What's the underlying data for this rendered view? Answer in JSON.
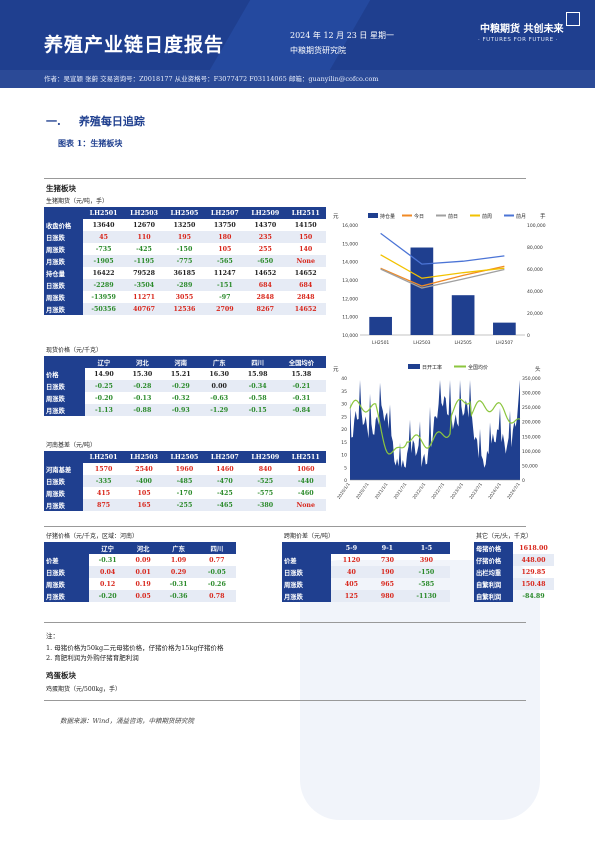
{
  "header": {
    "title": "养殖产业链日度报告",
    "date": "2024 年 12 月 23 日 星期一",
    "institute": "中粮期货研究院",
    "logo": "中粮期货  共创未来",
    "slogan": "· FUTURES FOR FUTURE ·",
    "authors": "作者：吴宣颖 张蔚 交易咨询号：Z0018177 从业资格号：F3077472 F03114065 邮箱：guanyilin@cofco.com"
  },
  "section": {
    "num": "一.",
    "title": "养殖每日追踪",
    "figure": "图表 1：生猪板块"
  },
  "hog": {
    "label": "生猪板块",
    "futures_label": "生猪期货（元/吨，手）",
    "futures": {
      "cols": [
        "LH2501",
        "LH2503",
        "LH2505",
        "LH2507",
        "LH2509",
        "LH2511"
      ],
      "rows": [
        {
          "name": "收盘价格",
          "vals": [
            "13640",
            "12670",
            "13250",
            "13750",
            "14370",
            "14150"
          ],
          "cls": [
            "blk",
            "blk",
            "blk",
            "blk",
            "blk",
            "blk"
          ]
        },
        {
          "name": "日涨跌",
          "vals": [
            "45",
            "110",
            "195",
            "180",
            "235",
            "150"
          ],
          "cls": [
            "red",
            "red",
            "red",
            "red",
            "red",
            "red"
          ]
        },
        {
          "name": "周涨跌",
          "vals": [
            "-735",
            "-425",
            "-150",
            "105",
            "255",
            "140"
          ],
          "cls": [
            "grn",
            "grn",
            "grn",
            "red",
            "red",
            "red"
          ]
        },
        {
          "name": "月涨跌",
          "vals": [
            "-1905",
            "-1195",
            "-775",
            "-565",
            "-650",
            "None"
          ],
          "cls": [
            "grn",
            "grn",
            "grn",
            "grn",
            "grn",
            "red"
          ]
        },
        {
          "name": "持仓量",
          "vals": [
            "16422",
            "79528",
            "36185",
            "11247",
            "14652",
            "14652"
          ],
          "cls": [
            "blk",
            "blk",
            "blk",
            "blk",
            "blk",
            "blk"
          ]
        },
        {
          "name": "日涨跌",
          "vals": [
            "-2289",
            "-3504",
            "-289",
            "-151",
            "684",
            "684"
          ],
          "cls": [
            "grn",
            "grn",
            "grn",
            "grn",
            "red",
            "red"
          ]
        },
        {
          "name": "周涨跌",
          "vals": [
            "-13959",
            "11271",
            "3055",
            "-97",
            "2848",
            "2848"
          ],
          "cls": [
            "grn",
            "red",
            "red",
            "grn",
            "red",
            "red"
          ]
        },
        {
          "name": "月涨跌",
          "vals": [
            "-50356",
            "40767",
            "12536",
            "2709",
            "8267",
            "14652"
          ],
          "cls": [
            "grn",
            "red",
            "red",
            "red",
            "red",
            "red"
          ]
        }
      ]
    },
    "spot_label": "现货价格（元/千克）",
    "spot": {
      "cols": [
        "辽宁",
        "河北",
        "河南",
        "广东",
        "四川",
        "全国均价"
      ],
      "rows": [
        {
          "name": "价格",
          "vals": [
            "14.90",
            "15.30",
            "15.21",
            "16.30",
            "15.98",
            "15.38"
          ],
          "cls": [
            "blk",
            "blk",
            "blk",
            "blk",
            "blk",
            "blk"
          ]
        },
        {
          "name": "日涨跌",
          "vals": [
            "-0.25",
            "-0.28",
            "-0.29",
            "0.00",
            "-0.34",
            "-0.21"
          ],
          "cls": [
            "grn",
            "grn",
            "grn",
            "blk",
            "grn",
            "grn"
          ]
        },
        {
          "name": "周涨跌",
          "vals": [
            "-0.20",
            "-0.13",
            "-0.32",
            "-0.63",
            "-0.58",
            "-0.31"
          ],
          "cls": [
            "grn",
            "grn",
            "grn",
            "grn",
            "grn",
            "grn"
          ]
        },
        {
          "name": "月涨跌",
          "vals": [
            "-1.13",
            "-0.88",
            "-0.93",
            "-1.29",
            "-0.15",
            "-0.84"
          ],
          "cls": [
            "grn",
            "grn",
            "grn",
            "grn",
            "grn",
            "grn"
          ]
        }
      ]
    },
    "basis_label": "河南基差（元/吨）",
    "basis": {
      "cols": [
        "LH2501",
        "LH2503",
        "LH2505",
        "LH2507",
        "LH2509",
        "LH2511"
      ],
      "rows": [
        {
          "name": "河南基差",
          "vals": [
            "1570",
            "2540",
            "1960",
            "1460",
            "840",
            "1060"
          ],
          "cls": [
            "red",
            "red",
            "red",
            "red",
            "red",
            "red"
          ]
        },
        {
          "name": "日涨跌",
          "vals": [
            "-335",
            "-400",
            "-485",
            "-470",
            "-525",
            "-440"
          ],
          "cls": [
            "grn",
            "grn",
            "grn",
            "grn",
            "grn",
            "grn"
          ]
        },
        {
          "name": "周涨跌",
          "vals": [
            "415",
            "105",
            "-170",
            "-425",
            "-575",
            "-460"
          ],
          "cls": [
            "red",
            "red",
            "grn",
            "grn",
            "grn",
            "grn"
          ]
        },
        {
          "name": "月涨跌",
          "vals": [
            "875",
            "165",
            "-255",
            "-465",
            "-380",
            "None"
          ],
          "cls": [
            "red",
            "red",
            "grn",
            "grn",
            "grn",
            "red"
          ]
        }
      ]
    },
    "piglet_label": "仔猪价格（元/千克，区域：河南）",
    "piglet": {
      "cols": [
        "辽宁",
        "河北",
        "广东",
        "四川"
      ],
      "rows": [
        {
          "name": "价差",
          "vals": [
            "-0.31",
            "0.09",
            "1.09",
            "0.77"
          ],
          "cls": [
            "grn",
            "red",
            "red",
            "red"
          ]
        },
        {
          "name": "日涨跌",
          "vals": [
            "0.04",
            "0.01",
            "0.29",
            "-0.05"
          ],
          "cls": [
            "red",
            "red",
            "red",
            "grn"
          ]
        },
        {
          "name": "周涨跌",
          "vals": [
            "0.12",
            "0.19",
            "-0.31",
            "-0.26"
          ],
          "cls": [
            "red",
            "red",
            "grn",
            "grn"
          ]
        },
        {
          "name": "月涨跌",
          "vals": [
            "-0.20",
            "0.05",
            "-0.36",
            "0.78"
          ],
          "cls": [
            "grn",
            "red",
            "grn",
            "red"
          ]
        }
      ]
    },
    "spread_label": "跨期价差（元/吨）",
    "spread": {
      "cols": [
        "5-9",
        "9-1",
        "1-5"
      ],
      "rows": [
        {
          "name": "价差",
          "vals": [
            "1120",
            "730",
            "390"
          ],
          "cls": [
            "red",
            "red",
            "red"
          ]
        },
        {
          "name": "日涨跌",
          "vals": [
            "40",
            "190",
            "-150"
          ],
          "cls": [
            "red",
            "red",
            "grn"
          ]
        },
        {
          "name": "周涨跌",
          "vals": [
            "405",
            "965",
            "-585"
          ],
          "cls": [
            "red",
            "red",
            "grn"
          ]
        },
        {
          "name": "月涨跌",
          "vals": [
            "125",
            "980",
            "-1130"
          ],
          "cls": [
            "red",
            "red",
            "grn"
          ]
        }
      ]
    },
    "other_label": "其它（元/头，千克）",
    "other": {
      "rows": [
        {
          "name": "母猪价格",
          "val": "1618.00"
        },
        {
          "name": "仔猪价格",
          "val": "448.00"
        },
        {
          "name": "出栏均重",
          "val": "129.85"
        },
        {
          "name": "自繁利润",
          "val": "150.48"
        },
        {
          "name": "自繁利润",
          "val": "-84.89"
        }
      ]
    }
  },
  "notes": {
    "head": "注：",
    "n1": "1. 母猪价格为50kg二元母猪价格，仔猪价格为15kg仔猪价格",
    "n2": "2. 育肥利润为外购仔猪育肥利润"
  },
  "egg": {
    "label": "鸡蛋板块",
    "sub": "鸡蛋期货（元/500kg，手）"
  },
  "source": "数据来源：Wind，涌益咨询，中粮期货研究院",
  "chart_data": [
    {
      "type": "bar",
      "categories": [
        "LH2501",
        "LH2503",
        "LH2505",
        "LH2507"
      ],
      "series": [
        {
          "name": "持仓量",
          "type": "bar",
          "values": [
            16422,
            79528,
            36185,
            11247
          ]
        },
        {
          "name": "今日",
          "type": "line",
          "values": [
            13640,
            12670,
            13250,
            13750
          ]
        },
        {
          "name": "前日",
          "type": "line",
          "values": [
            13595,
            12560,
            13055,
            13570
          ]
        },
        {
          "name": "前周",
          "type": "line",
          "values": [
            14375,
            13095,
            13400,
            13645
          ]
        },
        {
          "name": "前月",
          "type": "line",
          "values": [
            15545,
            13865,
            14025,
            14315
          ]
        }
      ],
      "ylim_left": [
        10000,
        16000
      ],
      "yticks_left": [
        "16,000",
        "15,000",
        "14,000",
        "13,000",
        "12,000",
        "11,000",
        "10,000"
      ],
      "ylim_right": [
        0,
        100000
      ],
      "yticks_right": [
        "100,000",
        "80,000",
        "60,000",
        "40,000",
        "20,000",
        "0"
      ],
      "ylabel_left": "元",
      "ylabel_right": "手",
      "legend": "top"
    },
    {
      "type": "area",
      "series": [
        {
          "name": "日开工率",
          "type": "area",
          "axis": "right"
        },
        {
          "name": "全国均价",
          "type": "line",
          "axis": "left"
        }
      ],
      "x": [
        "2020/1/1",
        "2020/7/1",
        "2021/1/1",
        "2021/7/1",
        "2022/1/1",
        "2022/7/1",
        "2023/1/1",
        "2023/7/1",
        "2024/1/1",
        "2024/7/1"
      ],
      "yticks_left": [
        "40",
        "35",
        "30",
        "25",
        "20",
        "15",
        "10",
        "5",
        "0"
      ],
      "yticks_right": [
        "350,000",
        "300,000",
        "250,000",
        "200,000",
        "150,000",
        "100,000",
        "50,000",
        "0"
      ],
      "ylim_left": [
        0,
        40
      ],
      "ylim_right": [
        0,
        350000
      ],
      "ylabel_left": "元",
      "ylabel_right": "头",
      "legend": "top"
    }
  ]
}
